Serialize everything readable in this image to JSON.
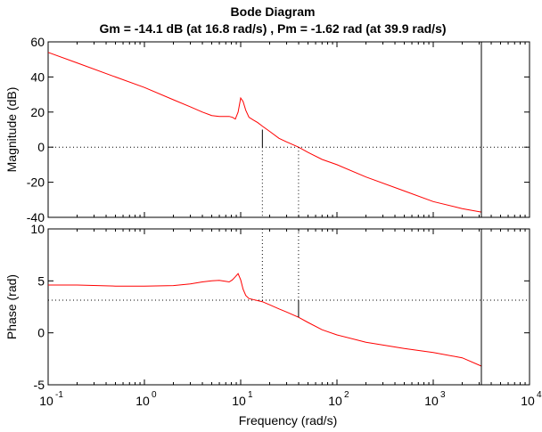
{
  "chart_data": {
    "type": "line",
    "title": "Bode Diagram",
    "subtitle": "Gm = -14.1 dB (at 16.8 rad/s) ,  Pm = -1.62 rad (at 39.9 rad/s)",
    "xlabel": "Frequency  (rad/s)",
    "xscale": "log",
    "xlim": [
      0.1,
      10000
    ],
    "x_tick_labels": [
      "10",
      "10",
      "10",
      "10",
      "10",
      "10"
    ],
    "x_tick_exponents": [
      "-1",
      "0",
      "1",
      "2",
      "3",
      "4"
    ],
    "line_color": "#ff0000",
    "grid": false,
    "magnitude": {
      "ylabel": "Magnitude (dB)",
      "ylim": [
        -40,
        60
      ],
      "yticks": [
        "-40",
        "-20",
        "0",
        "20",
        "40",
        "60"
      ],
      "reference_line": 0,
      "x": [
        0.1,
        0.2,
        0.5,
        1,
        2,
        3,
        4,
        5,
        6,
        7,
        7.6,
        8.2,
        8.8,
        9.4,
        10,
        10.6,
        11.3,
        12.2,
        13.5,
        15,
        16.8,
        20,
        25,
        30,
        39.9,
        50,
        70,
        100,
        200,
        500,
        1000,
        2000,
        3162
      ],
      "y": [
        54,
        48,
        40,
        34,
        27,
        23,
        20,
        18,
        17.5,
        17.5,
        17.5,
        17,
        16,
        20,
        28,
        26,
        21,
        17,
        15.5,
        14,
        12,
        9,
        5,
        3,
        0,
        -3,
        -7,
        -10,
        -17,
        -25,
        -31,
        -35,
        -37
      ]
    },
    "phase": {
      "ylabel": "Phase (rad)",
      "ylim": [
        -5,
        10
      ],
      "yticks": [
        "-5",
        "0",
        "5",
        "10"
      ],
      "reference_line": 3.14,
      "x": [
        0.1,
        0.2,
        0.5,
        1,
        2,
        3,
        4,
        5,
        6,
        7,
        7.6,
        8.2,
        8.8,
        9.4,
        10,
        10.6,
        11.3,
        12.2,
        13.5,
        15,
        16.8,
        20,
        25,
        30,
        39.9,
        50,
        70,
        100,
        200,
        500,
        1000,
        2000,
        3162
      ],
      "y": [
        4.6,
        4.6,
        4.5,
        4.5,
        4.55,
        4.7,
        4.9,
        5.0,
        5.05,
        4.95,
        4.9,
        5.1,
        5.4,
        5.7,
        5.1,
        4.2,
        3.6,
        3.3,
        3.2,
        3.1,
        3.0,
        2.7,
        2.3,
        2.0,
        1.5,
        1.0,
        0.3,
        -0.2,
        -0.9,
        -1.5,
        -1.9,
        -2.4,
        -3.2
      ]
    },
    "gain_margin": {
      "value_db": -14.1,
      "frequency": 16.8
    },
    "phase_margin": {
      "value_rad": -1.62,
      "frequency": 39.9
    },
    "vertical_marker_frequency": 3162
  }
}
